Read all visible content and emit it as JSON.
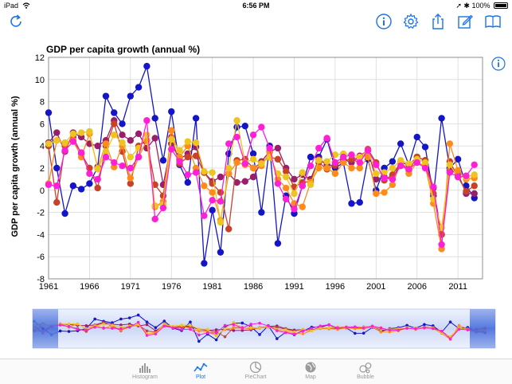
{
  "status": {
    "device": "iPad",
    "time": "6:56 PM",
    "battery": "100%"
  },
  "header": {
    "refresh_icon": "refresh-icon",
    "actions": [
      "info-icon",
      "gear-icon",
      "share-icon",
      "edit-icon",
      "book-icon"
    ]
  },
  "chart_title": "GDP per capita growth (annual %)",
  "tabs": [
    {
      "label": "Histogram",
      "icon": "histogram-icon"
    },
    {
      "label": "Plot",
      "icon": "plot-icon",
      "active": true
    },
    {
      "label": "PieChart",
      "icon": "pie-chart-icon"
    },
    {
      "label": "Map",
      "icon": "map-icon"
    },
    {
      "label": "Bubble",
      "icon": "bubble-icon"
    }
  ],
  "chart_data": {
    "type": "line",
    "title": "GDP per capita growth (annual %)",
    "xlabel": "",
    "ylabel": "GDP per capita growth (annual %)",
    "xlim": [
      1961,
      2014
    ],
    "ylim": [
      -8,
      12
    ],
    "x_ticks": [
      1961,
      1966,
      1971,
      1976,
      1981,
      1986,
      1991,
      1996,
      2001,
      2006,
      2011
    ],
    "y_ticks": [
      -8,
      -6,
      -4,
      -2,
      0,
      2,
      4,
      6,
      8,
      10,
      12
    ],
    "grid": true,
    "legend": "none",
    "x": [
      1961,
      1962,
      1963,
      1964,
      1965,
      1966,
      1967,
      1968,
      1969,
      1970,
      1971,
      1972,
      1973,
      1974,
      1975,
      1976,
      1977,
      1978,
      1979,
      1980,
      1981,
      1982,
      1983,
      1984,
      1985,
      1986,
      1987,
      1988,
      1989,
      1990,
      1991,
      1992,
      1993,
      1994,
      1995,
      1996,
      1997,
      1998,
      1999,
      2000,
      2001,
      2002,
      2003,
      2004,
      2005,
      2006,
      2007,
      2008,
      2009,
      2010,
      2011,
      2012,
      2013
    ],
    "series": [
      {
        "color": "#1515c8",
        "values": [
          7.0,
          2.0,
          -2.1,
          0.4,
          0.1,
          0.6,
          2.1,
          8.5,
          7.0,
          6.0,
          8.5,
          9.3,
          11.2,
          6.5,
          2.7,
          7.1,
          2.3,
          0.7,
          6.5,
          -6.6,
          -1.8,
          -5.6,
          3.3,
          5.7,
          5.8,
          3.3,
          -2.0,
          4.0,
          -4.8,
          -0.5,
          -2.1,
          0.4,
          3.0,
          3.0,
          4.6,
          2.0,
          2.5,
          -1.2,
          -1.1,
          2.8,
          0.0,
          2.0,
          2.6,
          4.2,
          2.3,
          4.8,
          3.9,
          -0.5,
          6.5,
          2.0,
          2.8,
          0.4,
          -0.7
        ]
      },
      {
        "color": "#9a1f6b",
        "values": [
          4.3,
          5.2,
          3.5,
          5.2,
          4.8,
          4.2,
          4.0,
          4.5,
          6.3,
          5.0,
          4.5,
          5.1,
          3.8,
          4.7,
          0.5,
          4.2,
          2.8,
          3.3,
          3.9,
          1.6,
          0.8,
          1.2,
          1.5,
          0.7,
          0.8,
          1.2,
          2.6,
          3.5,
          3.8,
          2.0,
          1.0,
          1.4,
          1.0,
          2.8,
          2.3,
          2.2,
          2.8,
          2.5,
          3.1,
          3.6,
          1.0,
          1.2,
          1.0,
          2.5,
          2.3,
          3.0,
          2.7,
          0.2,
          -4.0,
          1.8,
          1.5,
          -0.3,
          -0.3
        ]
      },
      {
        "color": "#c8412a",
        "values": [
          4.0,
          -1.1,
          4.0,
          4.8,
          3.3,
          2.0,
          0.2,
          4.0,
          6.0,
          3.5,
          0.6,
          4.0,
          4.5,
          0.5,
          -0.5,
          4.8,
          2.4,
          3.0,
          3.1,
          1.6,
          0.6,
          -0.2,
          -3.5,
          2.7,
          2.8,
          2.0,
          2.5,
          3.0,
          2.8,
          1.7,
          0.3,
          0.7,
          0.8,
          2.5,
          1.9,
          2.3,
          2.7,
          2.8,
          2.5,
          3.7,
          2.5,
          0.9,
          1.4,
          2.5,
          1.8,
          3.0,
          2.7,
          -0.3,
          -4.0,
          2.6,
          1.2,
          -0.1,
          0.4
        ]
      },
      {
        "color": "#ff8c1a",
        "values": [
          0.6,
          4.5,
          4.2,
          4.5,
          3.0,
          5.1,
          2.0,
          4.2,
          2.1,
          4.0,
          1.1,
          3.0,
          4.5,
          -1.5,
          -1.0,
          5.4,
          3.0,
          4.0,
          2.0,
          0.4,
          -0.2,
          -2.7,
          1.5,
          2.5,
          2.3,
          2.0,
          2.2,
          3.4,
          1.0,
          0.2,
          -1.2,
          -1.5,
          0.7,
          2.0,
          2.0,
          1.5,
          2.5,
          2.0,
          2.0,
          3.0,
          -0.3,
          -0.2,
          0.5,
          2.5,
          1.5,
          2.5,
          2.2,
          -1.2,
          -5.3,
          4.2,
          1.8,
          1.0,
          1.1
        ]
      },
      {
        "color": "#f0c420",
        "values": [
          4.2,
          4.5,
          4.3,
          5.1,
          5.2,
          5.3,
          1.9,
          3.5,
          5.0,
          4.3,
          3.0,
          3.8,
          5.0,
          -1.4,
          -1.3,
          4.6,
          3.6,
          4.4,
          4.3,
          1.7,
          1.6,
          -2.9,
          2.0,
          6.3,
          2.5,
          2.8,
          2.4,
          3.0,
          1.5,
          1.2,
          -0.3,
          1.6,
          0.5,
          2.7,
          2.6,
          3.2,
          3.3,
          3.2,
          3.0,
          3.6,
          1.5,
          1.6,
          2.0,
          2.7,
          2.4,
          2.8,
          2.5,
          -0.8,
          -3.4,
          2.3,
          1.2,
          1.2,
          1.4
        ]
      },
      {
        "color": "#ff1fd6",
        "values": [
          0.5,
          0.4,
          3.6,
          4.4,
          3.4,
          1.5,
          1.0,
          3.0,
          2.5,
          2.2,
          2.0,
          3.0,
          6.3,
          -2.6,
          -1.6,
          3.7,
          2.6,
          1.4,
          1.6,
          -2.3,
          -0.9,
          -1.0,
          4.2,
          4.8,
          2.4,
          5.0,
          5.7,
          3.8,
          0.6,
          -0.8,
          -1.7,
          0.4,
          2.2,
          3.8,
          4.7,
          2.5,
          3.0,
          3.2,
          2.5,
          3.6,
          2.3,
          1.1,
          1.0,
          2.2,
          1.9,
          2.5,
          2.0,
          0.3,
          -4.9,
          1.6,
          1.2,
          1.3,
          2.3
        ]
      }
    ]
  }
}
